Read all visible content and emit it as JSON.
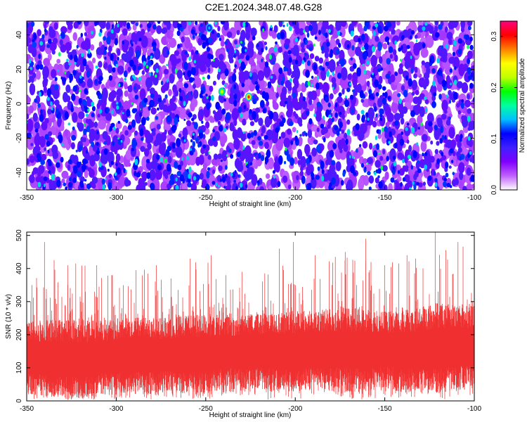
{
  "title": "C2E1.2024.348.07.48.G28",
  "chart_data": [
    {
      "type": "heatmap",
      "xlabel": "Height of straight line (km)",
      "ylabel": "Frequency (Hz)",
      "xlim": [
        -350,
        -100
      ],
      "ylim": [
        -50,
        48
      ],
      "xticks": [
        -350,
        -300,
        -250,
        -200,
        -150,
        -100
      ],
      "yticks": [
        -40,
        -20,
        0,
        20,
        40
      ],
      "colorbar": {
        "label": "Normalized spectral amplitude",
        "range": [
          0,
          0.33
        ],
        "ticks": [
          0.0,
          0.1,
          0.2,
          0.3
        ],
        "colormap": [
          "#ffffff",
          "#c060ff",
          "#8000ff",
          "#4020ff",
          "#0000ff",
          "#00c0ff",
          "#00ffa0",
          "#00ff00",
          "#c0ff00",
          "#ffff00",
          "#ff8000",
          "#ff0000",
          "#ff0080"
        ]
      },
      "peaks": [
        {
          "x": -241,
          "y": 7,
          "value": 0.24
        },
        {
          "x": -226,
          "y": 4,
          "value": 0.3
        },
        {
          "x": -248,
          "y": 44,
          "value": 0.14
        }
      ]
    },
    {
      "type": "line",
      "xlabel": "Height of straight line (km)",
      "ylabel": "SNR (10 * v/v)",
      "xlim": [
        -350,
        -100
      ],
      "ylim": [
        0,
        510
      ],
      "xticks": [
        -350,
        -300,
        -250,
        -200,
        -150,
        -100
      ],
      "yticks": [
        0,
        100,
        200,
        300,
        400,
        500
      ],
      "series": [
        {
          "color": "#f03030",
          "x": [
            -350,
            -340,
            -330,
            -320,
            -310,
            -300,
            -290,
            -280,
            -270,
            -260,
            -250,
            -240,
            -230,
            -220,
            -210,
            -200,
            -190,
            -180,
            -170,
            -160,
            -150,
            -140,
            -130,
            -120,
            -110,
            -100
          ],
          "values": [
            130,
            130,
            125,
            125,
            130,
            135,
            140,
            135,
            140,
            140,
            140,
            150,
            145,
            150,
            150,
            150,
            155,
            155,
            155,
            150,
            155,
            150,
            155,
            160,
            160,
            165
          ],
          "spread": [
            155,
            165,
            175,
            170,
            160,
            165,
            160,
            165,
            160,
            170,
            175,
            160,
            165,
            165,
            170,
            175,
            170,
            175,
            185,
            175,
            165,
            180,
            185,
            200,
            190,
            185
          ],
          "max": [
            300,
            480,
            410,
            415,
            410,
            380,
            395,
            410,
            370,
            430,
            440,
            380,
            390,
            385,
            460,
            480,
            440,
            435,
            450,
            490,
            410,
            440,
            430,
            510,
            480,
            490
          ]
        }
      ]
    }
  ]
}
